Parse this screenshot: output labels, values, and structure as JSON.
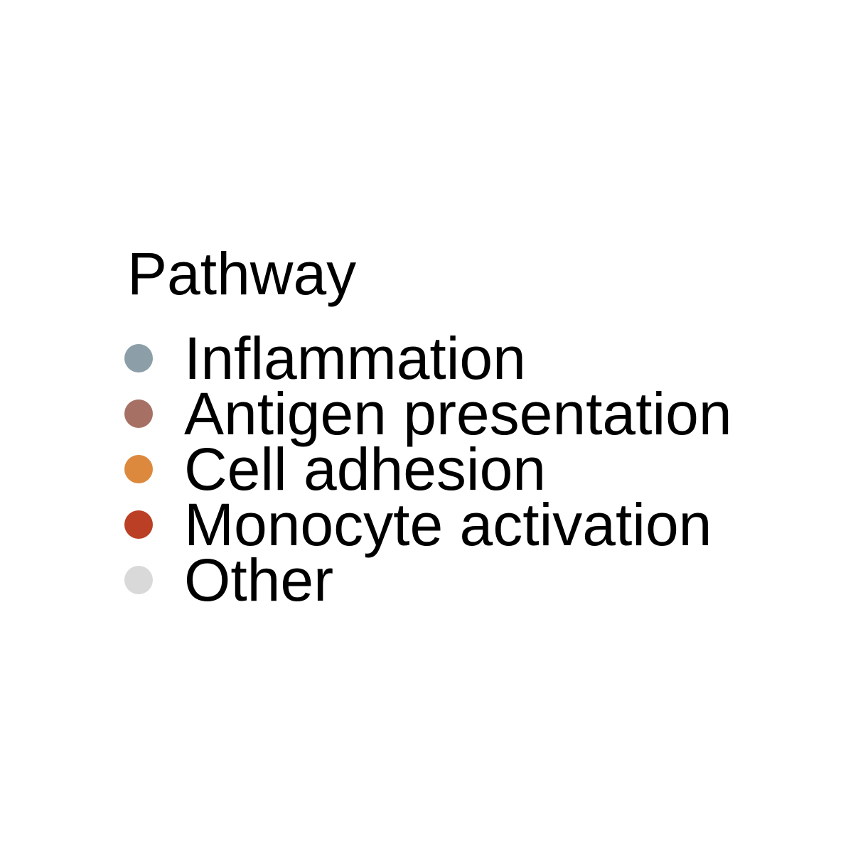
{
  "chart_data": {
    "type": "scatter",
    "legend": {
      "title": "Pathway",
      "placement": "center",
      "entries": [
        {
          "label": "Inflammation",
          "color": "#8C9FA8"
        },
        {
          "label": "Antigen presentation",
          "color": "#A67164"
        },
        {
          "label": "Cell adhesion",
          "color": "#DC893E"
        },
        {
          "label": "Monocyte activation",
          "color": "#BA3F25"
        },
        {
          "label": "Other",
          "color": "#D9D9D9"
        }
      ]
    }
  }
}
